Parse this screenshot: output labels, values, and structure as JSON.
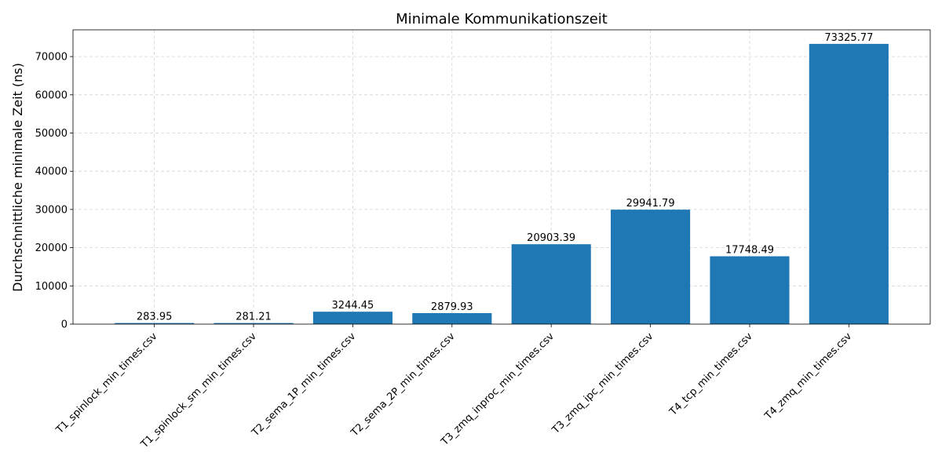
{
  "chart_data": {
    "type": "bar",
    "title": "Minimale Kommunikationszeit",
    "xlabel": "",
    "ylabel": "Durchschnittliche minimale Zeit (ns)",
    "categories": [
      "T1_spinlock_min_times.csv",
      "T1_spinlock_sm_min_times.csv",
      "T2_sema_1P_min_times.csv",
      "T2_sema_2P_min_times.csv",
      "T3_zmq_inproc_min_times.csv",
      "T3_zmq_ipc_min_times.csv",
      "T4_tcp_min_times.csv",
      "T4_zmq_min_times.csv"
    ],
    "values": [
      283.95,
      281.21,
      3244.45,
      2879.93,
      20903.39,
      29941.79,
      17748.49,
      73325.77
    ],
    "value_labels": [
      "283.95",
      "281.21",
      "3244.45",
      "2879.93",
      "20903.39",
      "29941.79",
      "17748.49",
      "73325.77"
    ],
    "ylim": [
      0,
      77000
    ],
    "yticks": [
      0,
      10000,
      20000,
      30000,
      40000,
      50000,
      60000,
      70000
    ],
    "ytick_labels": [
      "0",
      "10000",
      "20000",
      "30000",
      "40000",
      "50000",
      "60000",
      "70000"
    ],
    "grid": true,
    "bar_color": "#1f77b4"
  }
}
